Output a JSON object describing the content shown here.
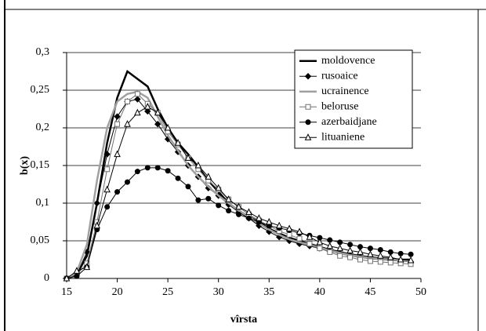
{
  "chart_data": {
    "type": "line",
    "x_label": "vîrsta",
    "y_label": "b(x)",
    "x": [
      15,
      16,
      17,
      18,
      19,
      20,
      21,
      22,
      23,
      24,
      25,
      26,
      27,
      28,
      29,
      30,
      31,
      32,
      33,
      34,
      35,
      36,
      37,
      38,
      39,
      40,
      41,
      42,
      43,
      44,
      45,
      46,
      47,
      48,
      49
    ],
    "series": [
      {
        "name": "moldovence",
        "color": "#000000",
        "line_width": 2.5,
        "marker": "none",
        "values": [
          0,
          0.005,
          0.03,
          0.1,
          0.18,
          0.24,
          0.275,
          0.265,
          0.255,
          0.225,
          0.2,
          0.18,
          0.165,
          0.148,
          0.13,
          0.115,
          0.1,
          0.09,
          0.082,
          0.075,
          0.066,
          0.06,
          0.054,
          0.05,
          0.046,
          0.042,
          0.038,
          0.035,
          0.032,
          0.03,
          0.028,
          0.027,
          0.026,
          0.025,
          0.025
        ]
      },
      {
        "name": "rusoaice",
        "color": "#000000",
        "line_width": 1,
        "marker": "diamond",
        "values": [
          0,
          0.005,
          0.035,
          0.1,
          0.165,
          0.215,
          0.235,
          0.238,
          0.222,
          0.205,
          0.185,
          0.168,
          0.15,
          0.135,
          0.12,
          0.11,
          0.098,
          0.088,
          0.08,
          0.07,
          0.062,
          0.055,
          0.05,
          0.046,
          0.043,
          0.04,
          0.036,
          0.033,
          0.03,
          0.028,
          0.026,
          0.025,
          0.024,
          0.023,
          0.022
        ]
      },
      {
        "name": "ucrainence",
        "color": "#a0a0a0",
        "line_width": 2.5,
        "marker": "none",
        "values": [
          0,
          0.008,
          0.045,
          0.13,
          0.2,
          0.235,
          0.245,
          0.248,
          0.24,
          0.215,
          0.19,
          0.17,
          0.15,
          0.135,
          0.122,
          0.11,
          0.1,
          0.09,
          0.082,
          0.073,
          0.065,
          0.058,
          0.052,
          0.048,
          0.045,
          0.041,
          0.037,
          0.034,
          0.031,
          0.029,
          0.027,
          0.026,
          0.025,
          0.024,
          0.023
        ]
      },
      {
        "name": "beloruse",
        "color": "#707070",
        "line_width": 1,
        "marker": "square",
        "values": [
          0,
          0.005,
          0.02,
          0.075,
          0.145,
          0.205,
          0.235,
          0.245,
          0.232,
          0.22,
          0.195,
          0.178,
          0.16,
          0.145,
          0.13,
          0.118,
          0.105,
          0.095,
          0.085,
          0.077,
          0.07,
          0.063,
          0.058,
          0.053,
          0.046,
          0.04,
          0.035,
          0.03,
          0.028,
          0.025,
          0.023,
          0.022,
          0.021,
          0.02,
          0.019
        ]
      },
      {
        "name": "azerbaidjane",
        "color": "#000000",
        "line_width": 1,
        "marker": "circle",
        "values": [
          0,
          0.003,
          0.015,
          0.065,
          0.095,
          0.115,
          0.128,
          0.142,
          0.147,
          0.147,
          0.143,
          0.133,
          0.122,
          0.104,
          0.106,
          0.097,
          0.09,
          0.085,
          0.08,
          0.075,
          0.07,
          0.067,
          0.064,
          0.06,
          0.057,
          0.054,
          0.051,
          0.048,
          0.045,
          0.042,
          0.04,
          0.038,
          0.035,
          0.033,
          0.032
        ]
      },
      {
        "name": "lituaniene",
        "color": "#000000",
        "line_width": 1,
        "marker": "triangle",
        "values": [
          0,
          0.01,
          0.015,
          0.07,
          0.118,
          0.165,
          0.205,
          0.22,
          0.228,
          0.22,
          0.2,
          0.18,
          0.16,
          0.15,
          0.135,
          0.12,
          0.105,
          0.095,
          0.088,
          0.08,
          0.075,
          0.07,
          0.066,
          0.062,
          0.055,
          0.048,
          0.043,
          0.04,
          0.037,
          0.035,
          0.032,
          0.03,
          0.028,
          0.025,
          0.024
        ]
      }
    ],
    "xlim": [
      15,
      50
    ],
    "xticks": [
      15,
      20,
      25,
      30,
      35,
      40,
      45,
      50
    ],
    "ylim": [
      0,
      0.3
    ],
    "yticks": [
      0,
      {
        "value": 0.05,
        "label": "0,05"
      },
      {
        "value": 0.1,
        "label": "0,1"
      },
      {
        "value": 0.15,
        "label": "0,15"
      },
      {
        "value": 0.2,
        "label": "0,2"
      },
      {
        "value": 0.25,
        "label": "0,25"
      },
      {
        "value": 0.3,
        "label": "0,3"
      }
    ],
    "grid": true,
    "legend": "upper right"
  }
}
